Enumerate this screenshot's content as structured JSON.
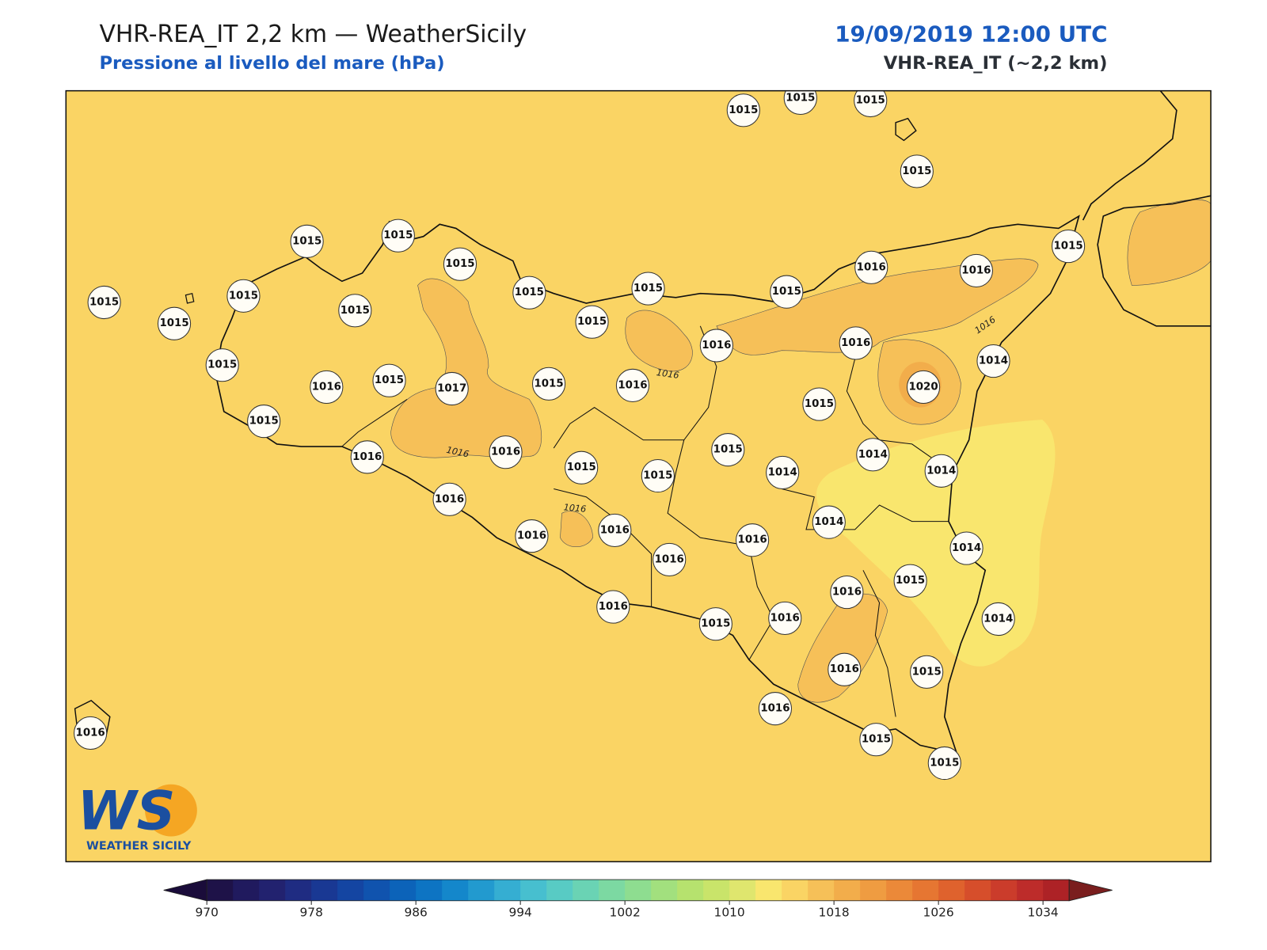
{
  "header": {
    "title": "VHR-REA_IT 2,2 km — WeatherSicily",
    "subtitle": "Pressione al livello del mare (hPa)",
    "datetime": "19/09/2019 12:00 UTC",
    "model": "VHR-REA_IT (~2,2 km)"
  },
  "map": {
    "station_values": [
      1015,
      1015,
      1015,
      1015,
      1015,
      1015,
      1015,
      1015,
      1015,
      1015,
      1015,
      1015,
      1015,
      1015,
      1015,
      1016,
      1016,
      1015,
      1015,
      1016,
      1015,
      1017,
      1015,
      1016,
      1016,
      1016,
      1014,
      1020,
      1015,
      1015,
      1016,
      1016,
      1015,
      1015,
      1015,
      1014,
      1014,
      1014,
      1016,
      1014,
      1016,
      1016,
      1016,
      1016,
      1014,
      1015,
      1016,
      1016,
      1015,
      1016,
      1014,
      1016,
      1015,
      1016,
      1016,
      1015,
      1015
    ],
    "contour_labels": [
      1016,
      1016,
      1016,
      1016
    ]
  },
  "colorbar": {
    "lim": [
      970,
      1036
    ],
    "ticks": [
      970,
      978,
      986,
      994,
      1002,
      1010,
      1018,
      1026,
      1034
    ],
    "colors": [
      "#1e1248",
      "#201a5e",
      "#22226f",
      "#1f2c82",
      "#193893",
      "#1445a2",
      "#1053ae",
      "#0c63b9",
      "#0d74c3",
      "#1487cb",
      "#229acf",
      "#35aed2",
      "#47bfcf",
      "#58cbc4",
      "#6ad3b4",
      "#7cd9a2",
      "#8edd90",
      "#a2e07e",
      "#b6e26e",
      "#c9e46a",
      "#dfe66e",
      "#f9e66e",
      "#fad464",
      "#f6c058",
      "#f2ad4b",
      "#ef9c41",
      "#eb8939",
      "#e67632",
      "#df622d",
      "#d64e2b",
      "#cb3c2b",
      "#bd2c2a",
      "#ad2226"
    ],
    "under_color": "#1a0c3a",
    "over_color": "#7a1e1e"
  },
  "logo": {
    "mark": "WS",
    "text": "WEATHER SICILY"
  }
}
